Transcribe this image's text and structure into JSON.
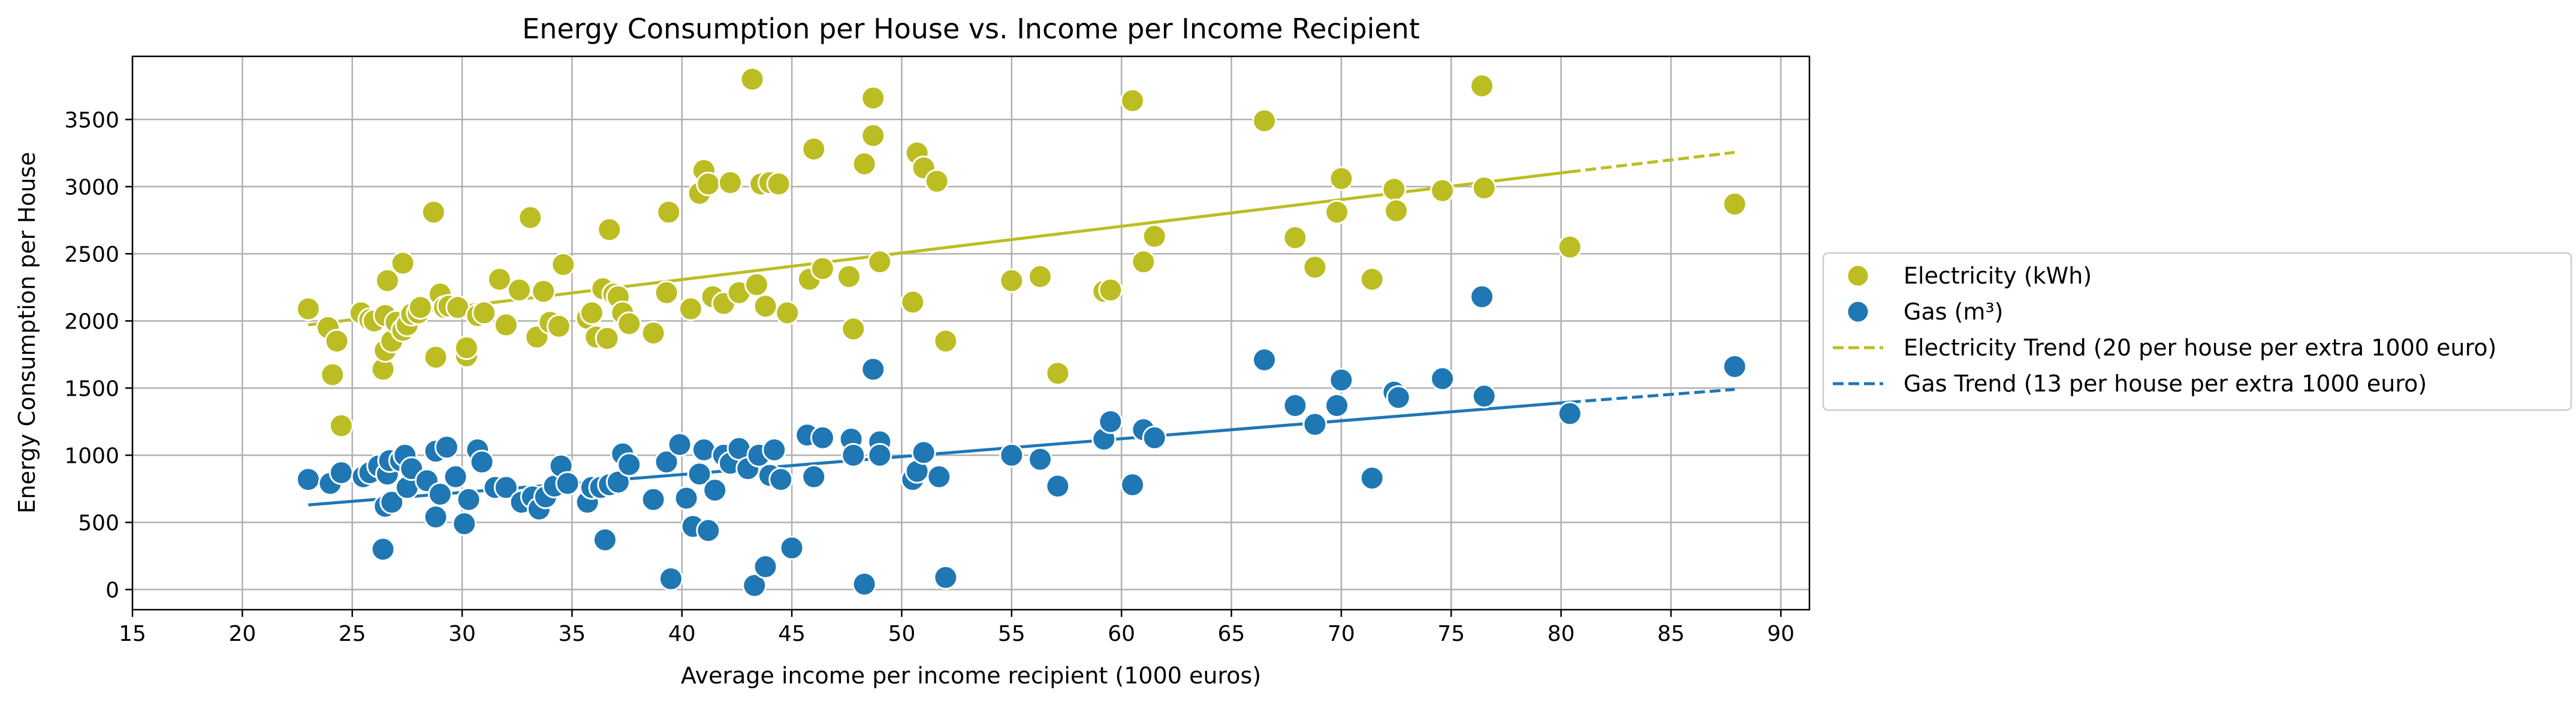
{
  "chart_data": {
    "type": "scatter",
    "title": "Energy Consumption per House vs. Income per Income Recipient",
    "xlabel": "Average income per income recipient (1000 euros)",
    "ylabel": "Energy Consumption per House",
    "xlim": [
      15,
      91.3
    ],
    "ylim": [
      -150,
      3970
    ],
    "xticks": [
      15,
      20,
      25,
      30,
      35,
      40,
      45,
      50,
      55,
      60,
      65,
      70,
      75,
      80,
      85,
      90
    ],
    "yticks": [
      0,
      500,
      1000,
      1500,
      2000,
      2500,
      3000,
      3500
    ],
    "grid": true,
    "legend_position": "center-right-outside",
    "colors": {
      "electricity": "#bcbd22",
      "gas": "#1f77b4"
    },
    "series": [
      {
        "name": "Electricity (kWh)",
        "kind": "scatter",
        "color": "#bcbd22",
        "points": [
          [
            23,
            2090
          ],
          [
            23.9,
            1950
          ],
          [
            24.1,
            1600
          ],
          [
            24.3,
            1850
          ],
          [
            24.5,
            1220
          ],
          [
            25.4,
            2060
          ],
          [
            25.8,
            2010
          ],
          [
            26,
            2000
          ],
          [
            26.4,
            1640
          ],
          [
            26.5,
            1780
          ],
          [
            26.5,
            2040
          ],
          [
            26.6,
            2300
          ],
          [
            26.8,
            1850
          ],
          [
            27,
            1990
          ],
          [
            27.3,
            2430
          ],
          [
            27.3,
            1930
          ],
          [
            27.5,
            1970
          ],
          [
            27.7,
            2050
          ],
          [
            28,
            2060
          ],
          [
            28.1,
            2100
          ],
          [
            28.7,
            2810
          ],
          [
            28.8,
            1730
          ],
          [
            29,
            2200
          ],
          [
            29.2,
            2100
          ],
          [
            29.4,
            2110
          ],
          [
            29.8,
            2100
          ],
          [
            30.2,
            1740
          ],
          [
            30.2,
            1800
          ],
          [
            30.7,
            2040
          ],
          [
            31,
            2060
          ],
          [
            31.7,
            2310
          ],
          [
            32,
            1970
          ],
          [
            32.6,
            2230
          ],
          [
            33.1,
            2770
          ],
          [
            33.4,
            1880
          ],
          [
            33.7,
            2220
          ],
          [
            34,
            1990
          ],
          [
            34.4,
            1960
          ],
          [
            34.6,
            2420
          ],
          [
            35.7,
            2020
          ],
          [
            35.9,
            2060
          ],
          [
            36.1,
            1880
          ],
          [
            36.4,
            2240
          ],
          [
            36.6,
            1870
          ],
          [
            36.7,
            2680
          ],
          [
            36.9,
            2200
          ],
          [
            37.1,
            2180
          ],
          [
            37.3,
            2060
          ],
          [
            37.6,
            1980
          ],
          [
            38.7,
            1910
          ],
          [
            39.3,
            2210
          ],
          [
            39.4,
            2810
          ],
          [
            40.4,
            2090
          ],
          [
            40.8,
            2950
          ],
          [
            41,
            3120
          ],
          [
            41.2,
            3020
          ],
          [
            41.4,
            2180
          ],
          [
            41.9,
            2130
          ],
          [
            42.2,
            3030
          ],
          [
            42.6,
            2210
          ],
          [
            43.2,
            3800
          ],
          [
            43.4,
            2270
          ],
          [
            43.6,
            3020
          ],
          [
            43.8,
            2110
          ],
          [
            44,
            3030
          ],
          [
            44.4,
            3020
          ],
          [
            44.8,
            2060
          ],
          [
            45.8,
            2310
          ],
          [
            46,
            3280
          ],
          [
            46.4,
            2390
          ],
          [
            47.6,
            2330
          ],
          [
            47.8,
            1940
          ],
          [
            48.3,
            3170
          ],
          [
            48.7,
            3660
          ],
          [
            48.7,
            3380
          ],
          [
            49,
            2440
          ],
          [
            50.5,
            2140
          ],
          [
            50.7,
            3250
          ],
          [
            51,
            3140
          ],
          [
            51.6,
            3040
          ],
          [
            52,
            1850
          ],
          [
            55,
            2300
          ],
          [
            56.3,
            2330
          ],
          [
            57.1,
            1610
          ],
          [
            59.2,
            2220
          ],
          [
            59.5,
            2230
          ],
          [
            60.5,
            3640
          ],
          [
            61,
            2440
          ],
          [
            61.5,
            2630
          ],
          [
            66.5,
            3490
          ],
          [
            67.9,
            2620
          ],
          [
            68.8,
            2400
          ],
          [
            69.8,
            2810
          ],
          [
            70,
            3060
          ],
          [
            71.4,
            2310
          ],
          [
            72.4,
            2980
          ],
          [
            72.5,
            2820
          ],
          [
            74.6,
            2970
          ],
          [
            76.4,
            3750
          ],
          [
            76.5,
            2990
          ],
          [
            80.4,
            2550
          ],
          [
            87.9,
            2870
          ]
        ]
      },
      {
        "name": "Gas (m³)",
        "kind": "scatter",
        "color": "#1f77b4",
        "points": [
          [
            23,
            820
          ],
          [
            24,
            790
          ],
          [
            24.5,
            870
          ],
          [
            25.5,
            840
          ],
          [
            25.8,
            870
          ],
          [
            26.2,
            920
          ],
          [
            26.4,
            300
          ],
          [
            26.5,
            620
          ],
          [
            26.6,
            860
          ],
          [
            26.7,
            960
          ],
          [
            26.8,
            650
          ],
          [
            27.2,
            960
          ],
          [
            27.4,
            1000
          ],
          [
            27.5,
            760
          ],
          [
            27.7,
            900
          ],
          [
            28.4,
            810
          ],
          [
            28.8,
            540
          ],
          [
            28.8,
            1030
          ],
          [
            29,
            710
          ],
          [
            29.3,
            1060
          ],
          [
            29.7,
            840
          ],
          [
            30.1,
            490
          ],
          [
            30.3,
            670
          ],
          [
            30.7,
            1040
          ],
          [
            30.9,
            950
          ],
          [
            31.5,
            760
          ],
          [
            32,
            760
          ],
          [
            32.7,
            650
          ],
          [
            33.2,
            690
          ],
          [
            33.5,
            600
          ],
          [
            33.8,
            690
          ],
          [
            34.2,
            770
          ],
          [
            34.5,
            920
          ],
          [
            34.8,
            790
          ],
          [
            35.7,
            650
          ],
          [
            35.9,
            760
          ],
          [
            36.3,
            760
          ],
          [
            36.5,
            370
          ],
          [
            36.7,
            780
          ],
          [
            37.1,
            800
          ],
          [
            37.3,
            1010
          ],
          [
            37.6,
            930
          ],
          [
            38.7,
            670
          ],
          [
            39.3,
            950
          ],
          [
            39.5,
            80
          ],
          [
            39.9,
            1080
          ],
          [
            40.2,
            680
          ],
          [
            40.5,
            470
          ],
          [
            40.8,
            860
          ],
          [
            41,
            1040
          ],
          [
            41.2,
            440
          ],
          [
            41.5,
            740
          ],
          [
            41.9,
            1000
          ],
          [
            42.2,
            940
          ],
          [
            42.6,
            1050
          ],
          [
            43,
            900
          ],
          [
            43.3,
            30
          ],
          [
            43.5,
            1000
          ],
          [
            43.8,
            170
          ],
          [
            44,
            850
          ],
          [
            44.2,
            1040
          ],
          [
            44.5,
            820
          ],
          [
            45,
            310
          ],
          [
            45.7,
            1150
          ],
          [
            46,
            840
          ],
          [
            46.4,
            1130
          ],
          [
            47.7,
            1120
          ],
          [
            47.8,
            1000
          ],
          [
            48.3,
            40
          ],
          [
            48.7,
            1640
          ],
          [
            49,
            1100
          ],
          [
            49,
            1000
          ],
          [
            50.5,
            820
          ],
          [
            50.7,
            880
          ],
          [
            51,
            1020
          ],
          [
            51.7,
            840
          ],
          [
            52,
            90
          ],
          [
            55,
            1000
          ],
          [
            56.3,
            970
          ],
          [
            57.1,
            770
          ],
          [
            59.2,
            1120
          ],
          [
            59.5,
            1250
          ],
          [
            60.5,
            780
          ],
          [
            61,
            1190
          ],
          [
            61.5,
            1130
          ],
          [
            66.5,
            1710
          ],
          [
            67.9,
            1370
          ],
          [
            68.8,
            1230
          ],
          [
            69.8,
            1370
          ],
          [
            70,
            1560
          ],
          [
            71.4,
            830
          ],
          [
            72.4,
            1470
          ],
          [
            72.6,
            1430
          ],
          [
            74.6,
            1570
          ],
          [
            76.4,
            2180
          ],
          [
            76.5,
            1440
          ],
          [
            80.4,
            1310
          ],
          [
            87.9,
            1660
          ]
        ]
      },
      {
        "name": "Electricity Trend (20 per house per extra 1000 euro)",
        "kind": "trend",
        "color": "#bcbd22",
        "solid": [
          [
            23,
            1970
          ],
          [
            80.4,
            3110
          ]
        ],
        "dashed": [
          [
            80.4,
            3110
          ],
          [
            87.9,
            3255
          ]
        ]
      },
      {
        "name": "Gas Trend (13 per house per extra 1000 euro)",
        "kind": "trend",
        "color": "#1f77b4",
        "solid": [
          [
            23,
            630
          ],
          [
            80.4,
            1395
          ]
        ],
        "dashed": [
          [
            80.4,
            1395
          ],
          [
            87.9,
            1490
          ]
        ]
      }
    ]
  }
}
